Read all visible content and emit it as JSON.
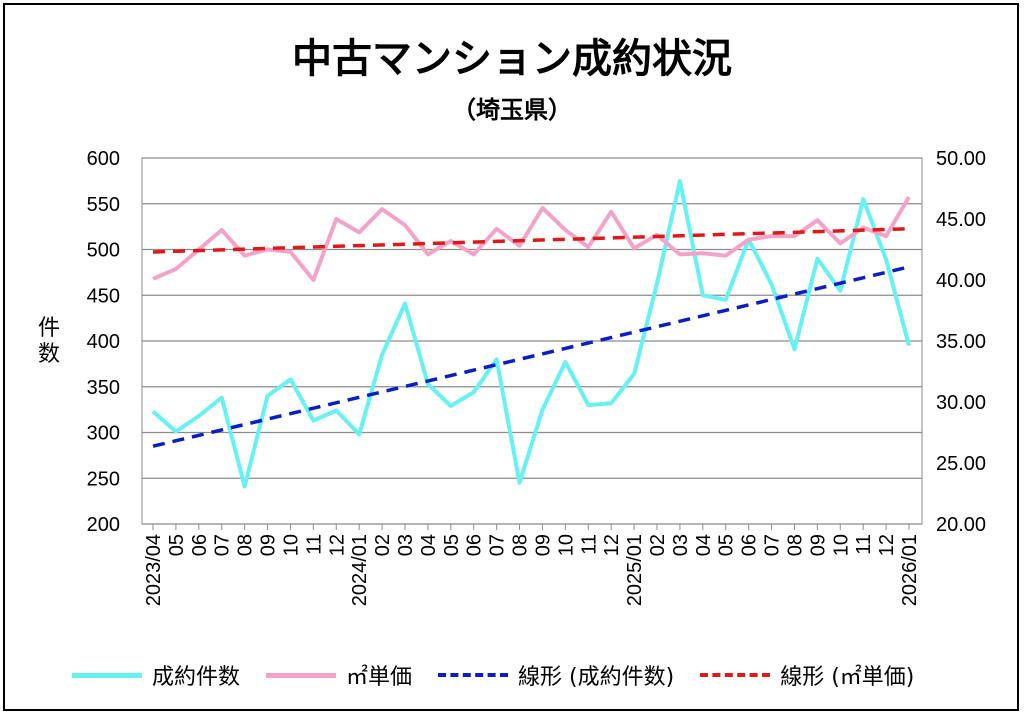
{
  "chart_data": {
    "type": "line",
    "title": "中古マンション成約状況",
    "subtitle": "（埼玉県）",
    "ylabel": "件数",
    "y_left_lim": [
      200,
      600
    ],
    "y_left_ticks": [
      "600",
      "550",
      "500",
      "450",
      "400",
      "350",
      "300",
      "250",
      "200"
    ],
    "y_right_lim": [
      20,
      50
    ],
    "y_right_ticks": [
      "50.00",
      "45.00",
      "40.00",
      "35.00",
      "30.00",
      "25.00",
      "20.00"
    ],
    "x_tick_labels": [
      "2023/04",
      "05",
      "06",
      "07",
      "08",
      "09",
      "10",
      "11",
      "12",
      "2024/01",
      "02",
      "03",
      "04",
      "05",
      "06",
      "07",
      "08",
      "09",
      "10",
      "11",
      "12",
      "2025/01",
      "02",
      "03",
      "04",
      "05",
      "06",
      "07",
      "08",
      "09",
      "10",
      "11",
      "12",
      "2026/01"
    ],
    "grid": true,
    "legend_position": "bottom",
    "series": [
      {
        "name": "成約件数",
        "axis": "left",
        "color": "#66f2f2",
        "style": "solid",
        "values": [
          323,
          301,
          318,
          338,
          241,
          340,
          358,
          313,
          324,
          298,
          385,
          441,
          353,
          329,
          344,
          380,
          245,
          325,
          377,
          330,
          332,
          364,
          463,
          575,
          450,
          445,
          511,
          462,
          391,
          490,
          455,
          555,
          489,
          395
        ]
      },
      {
        "name": "㎡単価",
        "axis": "right",
        "color": "#f4a3c8",
        "style": "solid",
        "values": [
          40.1,
          40.9,
          42.5,
          44.1,
          42.0,
          42.5,
          42.3,
          40.0,
          45.0,
          43.9,
          45.8,
          44.5,
          42.1,
          43.2,
          42.1,
          44.2,
          42.8,
          45.9,
          44.1,
          42.7,
          45.6,
          42.6,
          43.7,
          42.1,
          42.2,
          42.0,
          43.3,
          43.6,
          43.6,
          44.9,
          43.0,
          44.3,
          43.6,
          46.8
        ]
      },
      {
        "name": "線形 (成約件数)",
        "axis": "left",
        "color": "#0a1ec8",
        "style": "dashed",
        "trend_start": 285,
        "trend_end": 481
      },
      {
        "name": "線形 (㎡単価)",
        "axis": "right",
        "color": "#e01818",
        "style": "dashed",
        "trend_start": 42.3,
        "trend_end": 44.2
      }
    ]
  }
}
